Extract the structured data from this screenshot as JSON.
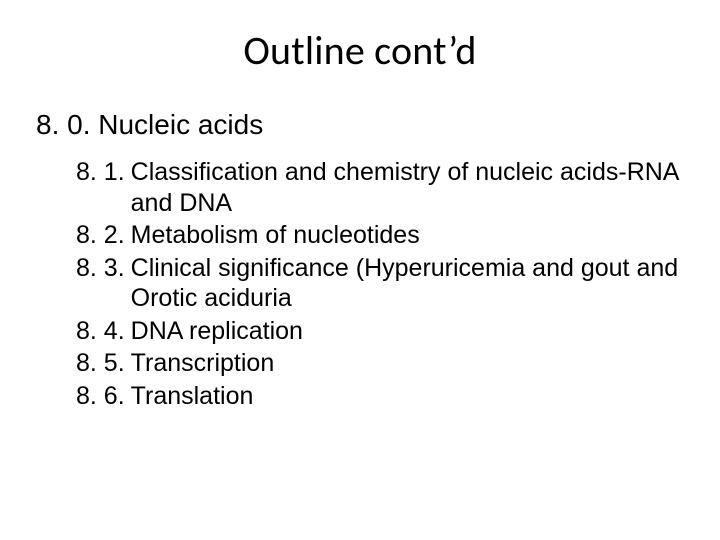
{
  "title": "Outline cont’d",
  "section": {
    "heading": "8. 0. Nucleic acids",
    "items": [
      {
        "num": "8. 1.",
        "text": "Classification and chemistry of nucleic acids-RNA and DNA"
      },
      {
        "num": "8. 2.",
        "text": "Metabolism of nucleotides"
      },
      {
        "num": "8. 3.",
        "text": "Clinical significance (Hyperuricemia and gout and Orotic aciduria"
      },
      {
        "num": "8. 4.",
        "text": "DNA replication"
      },
      {
        "num": "8. 5.",
        "text": "Transcription"
      },
      {
        "num": "8. 6.",
        "text": "Translation"
      }
    ]
  },
  "style": {
    "background_color": "#ffffff",
    "text_color": "#000000",
    "title_fontsize": 40,
    "heading_fontsize": 28,
    "body_fontsize": 25,
    "title_font": "Calibri",
    "body_font": "Arial"
  }
}
